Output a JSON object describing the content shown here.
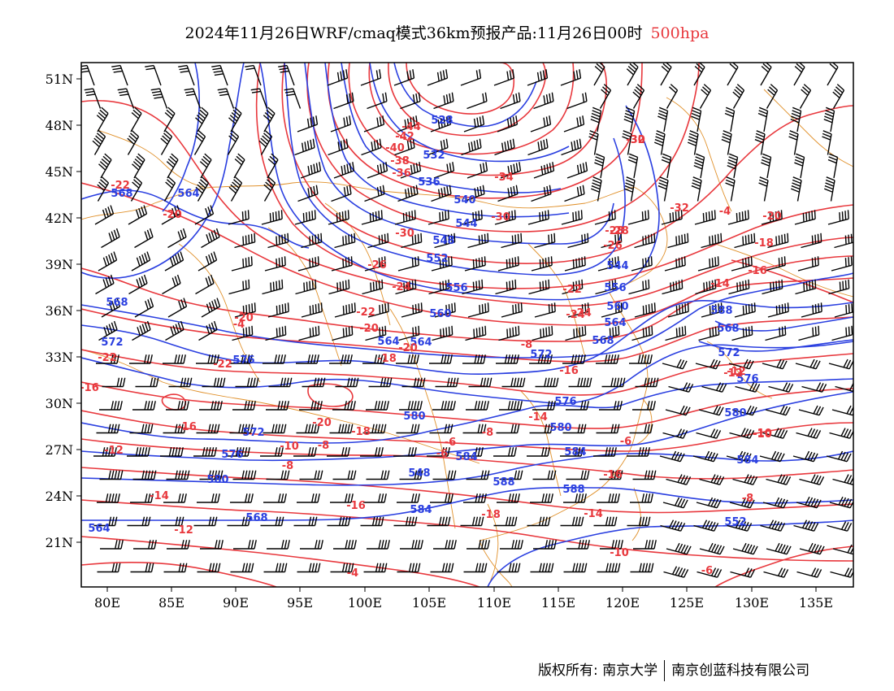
{
  "title": {
    "main": "2024年11月26日WRF/cmaq模式36km预报产品:11月26日00时",
    "level": "500hpa"
  },
  "map": {
    "lon_ticks": [
      "80E",
      "85E",
      "90E",
      "95E",
      "100E",
      "105E",
      "110E",
      "115E",
      "120E",
      "125E",
      "130E",
      "135E"
    ],
    "lat_ticks": [
      "51N",
      "48N",
      "45N",
      "42N",
      "39N",
      "36N",
      "33N",
      "30N",
      "27N",
      "24N",
      "21N"
    ],
    "colors": {
      "geopotential_height": "#2a3fe0",
      "temperature": "#e8383d",
      "coastline_border": "#e0902a",
      "wind_barb": "#000000"
    },
    "height_labels": [
      {
        "text": "528"
      },
      {
        "text": "532"
      },
      {
        "text": "536"
      },
      {
        "text": "540"
      },
      {
        "text": "544"
      },
      {
        "text": "548"
      },
      {
        "text": "552"
      },
      {
        "text": "556"
      },
      {
        "text": "560"
      },
      {
        "text": "564"
      },
      {
        "text": "568"
      },
      {
        "text": "572"
      },
      {
        "text": "576"
      },
      {
        "text": "580"
      },
      {
        "text": "584"
      },
      {
        "text": "588"
      },
      {
        "text": "568"
      },
      {
        "text": "564"
      },
      {
        "text": "552"
      },
      {
        "text": "548"
      },
      {
        "text": "544"
      },
      {
        "text": "556"
      },
      {
        "text": "560"
      },
      {
        "text": "564"
      },
      {
        "text": "568"
      },
      {
        "text": "572"
      },
      {
        "text": "576"
      },
      {
        "text": "580"
      },
      {
        "text": "584"
      },
      {
        "text": "588"
      },
      {
        "text": "584"
      },
      {
        "text": "580"
      },
      {
        "text": "576"
      },
      {
        "text": "572"
      },
      {
        "text": "564"
      },
      {
        "text": "568"
      },
      {
        "text": "572"
      },
      {
        "text": "576"
      },
      {
        "text": "580"
      },
      {
        "text": "584"
      },
      {
        "text": "588"
      },
      {
        "text": "568"
      },
      {
        "text": "564"
      }
    ],
    "temp_labels": [
      {
        "text": "-44"
      },
      {
        "text": "-42"
      },
      {
        "text": "-40"
      },
      {
        "text": "-38"
      },
      {
        "text": "-36"
      },
      {
        "text": "-34"
      },
      {
        "text": "-32"
      },
      {
        "text": "-30"
      },
      {
        "text": "-30"
      },
      {
        "text": "-28"
      },
      {
        "text": "-26"
      },
      {
        "text": "-24"
      },
      {
        "text": "-24"
      },
      {
        "text": "-22"
      },
      {
        "text": "-20"
      },
      {
        "text": "-20"
      },
      {
        "text": "-18"
      },
      {
        "text": "-16"
      },
      {
        "text": "-14"
      },
      {
        "text": "-12"
      },
      {
        "text": "-10"
      },
      {
        "text": "-8"
      },
      {
        "text": "-6"
      },
      {
        "text": "-4"
      },
      {
        "text": "-22"
      },
      {
        "text": "-20"
      },
      {
        "text": "-18"
      },
      {
        "text": "-16"
      },
      {
        "text": "-14"
      },
      {
        "text": "-12"
      },
      {
        "text": "-10"
      },
      {
        "text": "-8"
      },
      {
        "text": "-6"
      },
      {
        "text": "-4"
      },
      {
        "text": "-20"
      },
      {
        "text": "-22"
      },
      {
        "text": "-20"
      },
      {
        "text": "-18"
      },
      {
        "text": "-16"
      },
      {
        "text": "-12"
      },
      {
        "text": "-10"
      },
      {
        "text": "-8"
      },
      {
        "text": "-6"
      },
      {
        "text": "-8"
      },
      {
        "text": "-6"
      },
      {
        "text": "-16"
      },
      {
        "text": "-14"
      },
      {
        "text": "-18"
      },
      {
        "text": "-16"
      },
      {
        "text": "-14"
      },
      {
        "text": "-12"
      },
      {
        "text": "-10"
      },
      {
        "text": "-8"
      },
      {
        "text": "-22"
      },
      {
        "text": "-24"
      },
      {
        "text": "-26"
      },
      {
        "text": "-28"
      },
      {
        "text": "-30"
      },
      {
        "text": "-32"
      },
      {
        "text": "-4"
      },
      {
        "text": "-20"
      },
      {
        "text": "-22"
      },
      {
        "text": "-16"
      }
    ]
  },
  "footer": {
    "copyright_left": "版权所有: 南京大学",
    "copyright_right": "南京创蓝科技有限公司"
  }
}
